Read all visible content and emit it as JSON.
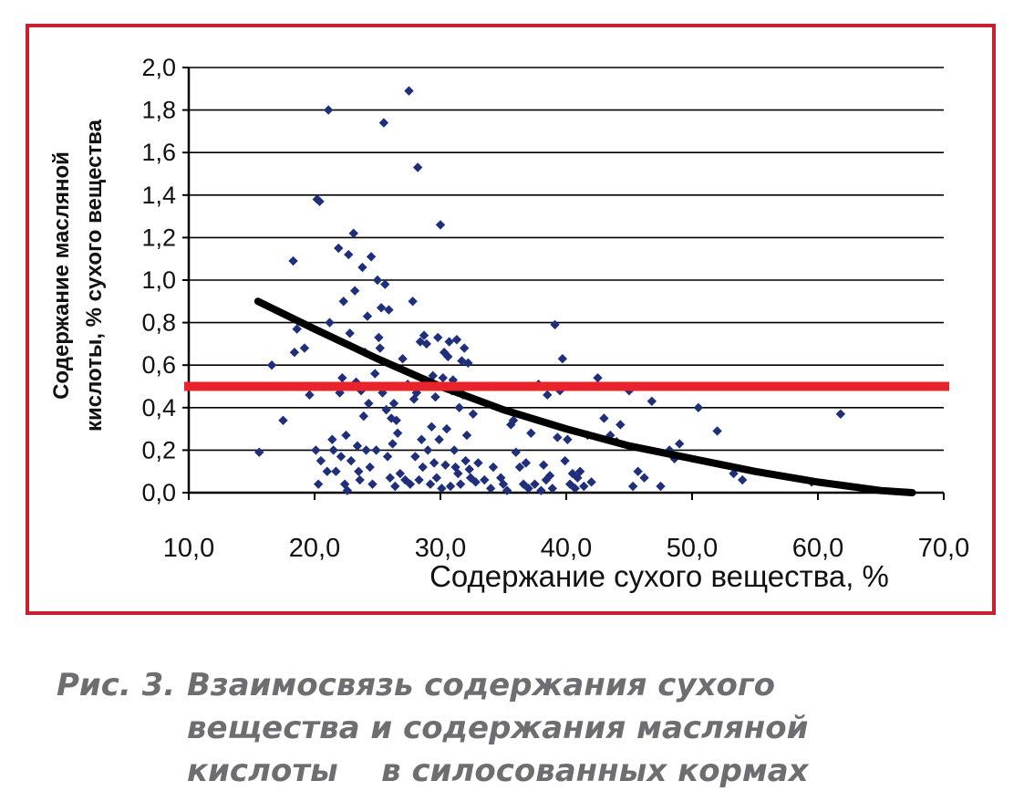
{
  "colors": {
    "frame": "#c8202f",
    "points": "#1f2f7a",
    "trend": "#000000",
    "threshold": "#e8232b",
    "grid": "#000000",
    "caption": "#6d6e71"
  },
  "caption": {
    "number": "Рис. 3.",
    "lines": [
      "Взаимосвязь содержания сухого",
      "вещества и содержания масляной",
      "кислоты    в силосованных кормах"
    ]
  },
  "chart_data": {
    "type": "scatter",
    "xlabel": "Содержание сухого вещества, %",
    "ylabel_lines": [
      "Содержание масляной",
      "кислоты, % сухого вещества"
    ],
    "xlim": [
      10,
      70
    ],
    "ylim": [
      0,
      2
    ],
    "x_ticks": [
      "10,0",
      "20,0",
      "30,0",
      "40,0",
      "50,0",
      "60,0",
      "70,0"
    ],
    "y_ticks": [
      "0,0",
      "0,2",
      "0,4",
      "0,6",
      "0,8",
      "1,0",
      "1,2",
      "1,4",
      "1,6",
      "1,8",
      "2,0"
    ],
    "grid": "horizontal",
    "threshold": 0.5,
    "trend_line": [
      [
        15.5,
        0.9
      ],
      [
        20,
        0.77
      ],
      [
        25,
        0.63
      ],
      [
        30,
        0.5
      ],
      [
        35,
        0.39
      ],
      [
        40,
        0.3
      ],
      [
        45,
        0.22
      ],
      [
        50,
        0.16
      ],
      [
        55,
        0.1
      ],
      [
        60,
        0.05
      ],
      [
        65,
        0.01
      ],
      [
        67.5,
        0.0
      ]
    ],
    "points": [
      [
        15.6,
        0.19
      ],
      [
        16.6,
        0.6
      ],
      [
        17.5,
        0.34
      ],
      [
        18.3,
        1.09
      ],
      [
        18.4,
        0.66
      ],
      [
        18.6,
        0.77
      ],
      [
        19.2,
        0.68
      ],
      [
        19.6,
        0.46
      ],
      [
        20.0,
        0.5
      ],
      [
        20.1,
        0.2
      ],
      [
        20.2,
        1.38
      ],
      [
        20.3,
        0.04
      ],
      [
        20.4,
        1.37
      ],
      [
        20.5,
        0.15
      ],
      [
        20.8,
        0.5
      ],
      [
        21.0,
        0.1
      ],
      [
        21.1,
        1.8
      ],
      [
        21.2,
        0.8
      ],
      [
        21.4,
        0.25
      ],
      [
        21.5,
        0.2
      ],
      [
        21.7,
        0.1
      ],
      [
        21.9,
        1.15
      ],
      [
        22.0,
        0.47
      ],
      [
        22.1,
        0.17
      ],
      [
        22.2,
        0.54
      ],
      [
        22.3,
        0.9
      ],
      [
        22.4,
        0.04
      ],
      [
        22.5,
        0.27
      ],
      [
        22.6,
        0.01
      ],
      [
        22.7,
        1.12
      ],
      [
        22.8,
        0.75
      ],
      [
        22.9,
        0.15
      ],
      [
        23.0,
        0.5
      ],
      [
        23.1,
        1.22
      ],
      [
        23.2,
        0.95
      ],
      [
        23.3,
        0.52
      ],
      [
        23.4,
        0.22
      ],
      [
        23.5,
        0.1
      ],
      [
        23.6,
        0.06
      ],
      [
        23.7,
        0.48
      ],
      [
        23.8,
        1.06
      ],
      [
        23.9,
        0.36
      ],
      [
        24.0,
        0.66
      ],
      [
        24.1,
        0.2
      ],
      [
        24.2,
        0.83
      ],
      [
        24.3,
        0.42
      ],
      [
        24.4,
        0.12
      ],
      [
        24.5,
        1.11
      ],
      [
        24.6,
        0.04
      ],
      [
        24.7,
        0.5
      ],
      [
        24.8,
        0.56
      ],
      [
        24.9,
        0.2
      ],
      [
        25.0,
        1.0
      ],
      [
        25.1,
        0.73
      ],
      [
        25.2,
        0.68
      ],
      [
        25.3,
        0.87
      ],
      [
        25.4,
        0.47
      ],
      [
        25.5,
        1.74
      ],
      [
        25.6,
        0.98
      ],
      [
        25.7,
        0.39
      ],
      [
        25.8,
        0.17
      ],
      [
        25.9,
        0.86
      ],
      [
        26.0,
        0.07
      ],
      [
        26.1,
        0.35
      ],
      [
        26.2,
        0.23
      ],
      [
        26.3,
        0.42
      ],
      [
        26.4,
        0.03
      ],
      [
        26.5,
        0.34
      ],
      [
        26.6,
        0.28
      ],
      [
        26.8,
        0.09
      ],
      [
        27.0,
        0.63
      ],
      [
        27.2,
        0.06
      ],
      [
        27.4,
        0.51
      ],
      [
        27.5,
        1.89
      ],
      [
        27.6,
        0.04
      ],
      [
        27.8,
        0.9
      ],
      [
        27.9,
        0.44
      ],
      [
        28.0,
        0.17
      ],
      [
        28.1,
        0.47
      ],
      [
        28.2,
        1.53
      ],
      [
        28.3,
        0.06
      ],
      [
        28.4,
        0.71
      ],
      [
        28.5,
        0.25
      ],
      [
        28.6,
        0.12
      ],
      [
        28.7,
        0.74
      ],
      [
        28.8,
        0.5
      ],
      [
        28.9,
        0.7
      ],
      [
        29.0,
        0.2
      ],
      [
        29.2,
        0.04
      ],
      [
        29.3,
        0.31
      ],
      [
        29.4,
        0.55
      ],
      [
        29.5,
        0.14
      ],
      [
        29.6,
        0.45
      ],
      [
        29.7,
        0.07
      ],
      [
        29.8,
        0.73
      ],
      [
        29.9,
        0.25
      ],
      [
        30.0,
        1.26
      ],
      [
        30.1,
        0.02
      ],
      [
        30.2,
        0.54
      ],
      [
        30.3,
        0.66
      ],
      [
        30.4,
        0.13
      ],
      [
        30.5,
        0.3
      ],
      [
        30.6,
        0.64
      ],
      [
        30.7,
        0.71
      ],
      [
        30.8,
        0.03
      ],
      [
        30.9,
        0.48
      ],
      [
        31.0,
        0.53
      ],
      [
        31.1,
        0.2
      ],
      [
        31.2,
        0.12
      ],
      [
        31.3,
        0.72
      ],
      [
        31.4,
        0.09
      ],
      [
        31.5,
        0.4
      ],
      [
        31.6,
        0.04
      ],
      [
        31.7,
        0.62
      ],
      [
        31.8,
        0.46
      ],
      [
        31.9,
        0.68
      ],
      [
        32.0,
        0.15
      ],
      [
        32.1,
        0.27
      ],
      [
        32.2,
        0.61
      ],
      [
        32.3,
        0.11
      ],
      [
        32.4,
        0.07
      ],
      [
        32.6,
        0.37
      ],
      [
        32.8,
        0.05
      ],
      [
        33.0,
        0.14
      ],
      [
        33.5,
        0.06
      ],
      [
        34.0,
        0.02
      ],
      [
        34.2,
        0.12
      ],
      [
        34.4,
        0.5
      ],
      [
        34.8,
        0.07
      ],
      [
        35.0,
        0.04
      ],
      [
        35.3,
        0.01
      ],
      [
        35.6,
        0.32
      ],
      [
        35.8,
        0.34
      ],
      [
        36.0,
        0.19
      ],
      [
        36.3,
        0.12
      ],
      [
        36.6,
        0.04
      ],
      [
        36.8,
        0.14
      ],
      [
        37.0,
        0.02
      ],
      [
        37.2,
        0.28
      ],
      [
        37.5,
        0.04
      ],
      [
        37.8,
        0.51
      ],
      [
        38.0,
        0.01
      ],
      [
        38.2,
        0.13
      ],
      [
        38.4,
        0.06
      ],
      [
        38.5,
        0.46
      ],
      [
        38.7,
        0.08
      ],
      [
        38.9,
        0.02
      ],
      [
        39.1,
        0.79
      ],
      [
        39.3,
        0.26
      ],
      [
        39.5,
        0.48
      ],
      [
        39.7,
        0.63
      ],
      [
        39.9,
        0.15
      ],
      [
        40.1,
        0.25
      ],
      [
        40.3,
        0.04
      ],
      [
        40.5,
        0.09
      ],
      [
        40.7,
        0.02
      ],
      [
        40.9,
        0.07
      ],
      [
        41.1,
        0.1
      ],
      [
        41.4,
        0.03
      ],
      [
        41.7,
        0.27
      ],
      [
        42.0,
        0.05
      ],
      [
        42.5,
        0.54
      ],
      [
        43.0,
        0.35
      ],
      [
        43.5,
        0.27
      ],
      [
        44.0,
        0.24
      ],
      [
        44.3,
        0.32
      ],
      [
        44.6,
        0.5
      ],
      [
        45.0,
        0.48
      ],
      [
        45.3,
        0.03
      ],
      [
        45.7,
        0.1
      ],
      [
        46.2,
        0.07
      ],
      [
        46.8,
        0.43
      ],
      [
        47.5,
        0.03
      ],
      [
        48.2,
        0.2
      ],
      [
        48.6,
        0.16
      ],
      [
        49.0,
        0.23
      ],
      [
        50.5,
        0.4
      ],
      [
        52.0,
        0.29
      ],
      [
        53.3,
        0.09
      ],
      [
        54.0,
        0.06
      ],
      [
        59.5,
        0.05
      ],
      [
        61.8,
        0.37
      ]
    ]
  }
}
